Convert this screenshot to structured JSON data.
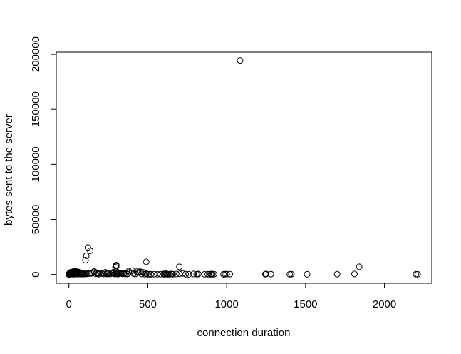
{
  "chart_data": {
    "type": "scatter",
    "title": "",
    "xlabel": "connection duration",
    "ylabel": "bytes sent to the server",
    "xlim": [
      -80,
      2300
    ],
    "ylim": [
      -8000,
      202000
    ],
    "xticks": [
      0,
      500,
      1000,
      1500,
      2000
    ],
    "yticks": [
      0,
      50000,
      100000,
      150000,
      200000
    ],
    "xtick_labels": [
      "0",
      "500",
      "1000",
      "1500",
      "2000"
    ],
    "ytick_labels": [
      "0",
      "50000",
      "100000",
      "150000",
      "200000"
    ],
    "grid": false,
    "legend": "none",
    "marker": "open-circle",
    "marker_color": "#000000",
    "series": [
      {
        "x": [
          0,
          1,
          2,
          3,
          4,
          5,
          6,
          8,
          10,
          12,
          14,
          16,
          18,
          20,
          22,
          25,
          28,
          30,
          33,
          36,
          40,
          44,
          48,
          52,
          56,
          60,
          65,
          70,
          75,
          80,
          85,
          90,
          95,
          100,
          2,
          5,
          9,
          15,
          22,
          30,
          40,
          55,
          70,
          90,
          105,
          110,
          120,
          135,
          110,
          118,
          130,
          150,
          160,
          170,
          180,
          190,
          200,
          210,
          220,
          230,
          240,
          250,
          260,
          270,
          280,
          290,
          295,
          298,
          300,
          305,
          310,
          320,
          330,
          340,
          350,
          360,
          370,
          380,
          400,
          410,
          420,
          430,
          440,
          450,
          460,
          470,
          480,
          490,
          500,
          510,
          520,
          540,
          560,
          580,
          600,
          605,
          610,
          615,
          620,
          625,
          630,
          640,
          650,
          660,
          680,
          700,
          720,
          740,
          760,
          790,
          810,
          820,
          860,
          880,
          890,
          900,
          905,
          910,
          920,
          980,
          990,
          1000,
          1020,
          1085,
          1245,
          1250,
          1280,
          1400,
          1410,
          1510,
          1700,
          1810,
          1840,
          2200,
          2210,
          35,
          50,
          160,
          250,
          280,
          300,
          300,
          300,
          300,
          380,
          455,
          490,
          700,
          45,
          60,
          75,
          140,
          190,
          240,
          310,
          350
        ],
        "y": [
          0,
          200,
          500,
          800,
          1200,
          300,
          700,
          1500,
          2000,
          400,
          900,
          1800,
          600,
          1100,
          2400,
          200,
          800,
          1500,
          300,
          1000,
          2500,
          500,
          1200,
          800,
          300,
          1800,
          600,
          1000,
          400,
          700,
          1200,
          300,
          800,
          500,
          100,
          400,
          900,
          1300,
          1700,
          2100,
          2800,
          1400,
          900,
          1100,
          13000,
          17000,
          24500,
          21500,
          500,
          1000,
          800,
          1500,
          2400,
          600,
          900,
          300,
          1200,
          800,
          500,
          2000,
          1000,
          700,
          400,
          1300,
          900,
          500,
          6500,
          8200,
          1200,
          700,
          300,
          800,
          1000,
          500,
          900,
          600,
          400,
          3000,
          3500,
          800,
          500,
          2500,
          1800,
          2700,
          500,
          2000,
          300,
          11500,
          200,
          300,
          200,
          300,
          200,
          300,
          500,
          200,
          300,
          800,
          500,
          300,
          200,
          300,
          500,
          300,
          400,
          7000,
          1000,
          300,
          200,
          500,
          300,
          400,
          200,
          300,
          300,
          200,
          500,
          300,
          300,
          200,
          300,
          400,
          300,
          194500,
          300,
          500,
          300,
          200,
          300,
          200,
          300,
          500,
          7000,
          300,
          200,
          3200,
          2600,
          2800,
          1500,
          2000,
          7500,
          8500,
          600,
          3000,
          1800,
          2200,
          800,
          600,
          1600,
          2300,
          400,
          900,
          1100,
          500,
          1500,
          700
        ]
      }
    ]
  }
}
